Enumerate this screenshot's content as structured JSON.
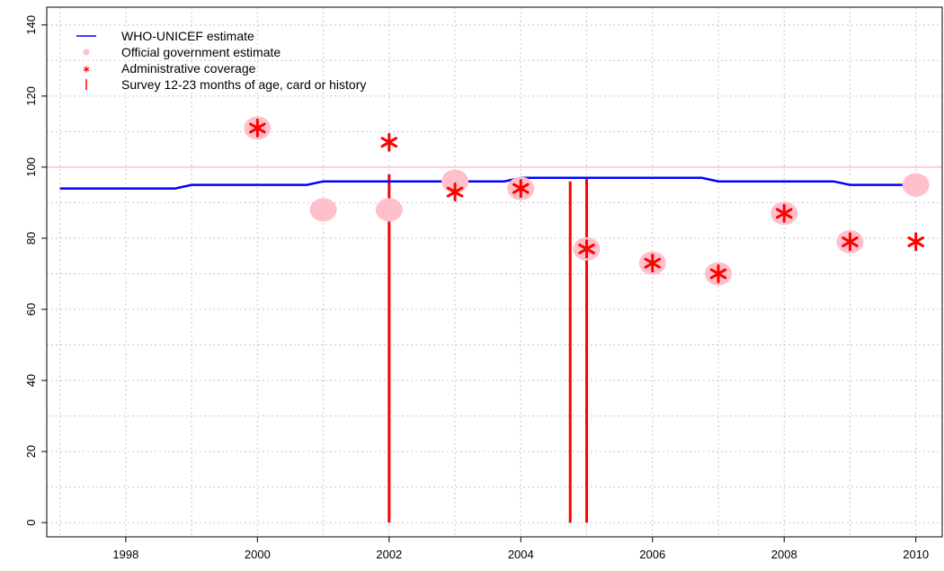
{
  "chart_data": {
    "type": "scatter",
    "title": "",
    "xlabel": "",
    "ylabel": "",
    "xlim": [
      1996.8,
      2010.4
    ],
    "ylim": [
      -4,
      145
    ],
    "x_ticks": [
      1998,
      2000,
      2002,
      2004,
      2006,
      2008,
      2010
    ],
    "y_ticks": [
      0,
      20,
      40,
      60,
      80,
      100,
      120,
      140
    ],
    "grid": true,
    "reference_line": 100,
    "legend_position": "top-left",
    "legend": [
      {
        "label": "WHO-UNICEF estimate",
        "marker": "line"
      },
      {
        "label": "Official government estimate",
        "marker": "circle"
      },
      {
        "label": "Administrative coverage",
        "marker": "asterisk"
      },
      {
        "label": "Survey 12-23 months of age, card or history",
        "marker": "vbar"
      }
    ],
    "series": [
      {
        "name": "WHO-UNICEF estimate",
        "kind": "step-line",
        "points": [
          [
            1997,
            94
          ],
          [
            1998,
            94
          ],
          [
            1999,
            95
          ],
          [
            2000,
            95
          ],
          [
            2001,
            96
          ],
          [
            2002,
            96
          ],
          [
            2003,
            96
          ],
          [
            2004,
            97
          ],
          [
            2005,
            97
          ],
          [
            2006,
            97
          ],
          [
            2007,
            96
          ],
          [
            2008,
            96
          ],
          [
            2009,
            95
          ],
          [
            2010,
            95
          ]
        ]
      },
      {
        "name": "Official government estimate",
        "kind": "circle",
        "points": [
          [
            2000,
            111
          ],
          [
            2001,
            88
          ],
          [
            2002,
            88
          ],
          [
            2003,
            96
          ],
          [
            2004,
            94
          ],
          [
            2005,
            77
          ],
          [
            2006,
            73
          ],
          [
            2007,
            70
          ],
          [
            2008,
            87
          ],
          [
            2009,
            79
          ],
          [
            2010,
            95
          ]
        ]
      },
      {
        "name": "Administrative coverage",
        "kind": "asterisk",
        "points": [
          [
            2000,
            111
          ],
          [
            2002,
            107
          ],
          [
            2003,
            93
          ],
          [
            2004,
            94
          ],
          [
            2005,
            77
          ],
          [
            2006,
            73
          ],
          [
            2007,
            70
          ],
          [
            2008,
            87
          ],
          [
            2009,
            79
          ],
          [
            2010,
            79
          ]
        ]
      },
      {
        "name": "Survey 12-23 months of age, card or history",
        "kind": "vbar",
        "points": [
          [
            2002,
            98
          ],
          [
            2004.75,
            96
          ],
          [
            2005,
            97
          ]
        ]
      }
    ],
    "colors": {
      "who_line": "#0000ff",
      "gov_circle": "#ffc0cb",
      "admin_star": "#ff0000",
      "survey_bar": "#ff0000",
      "ref_line": "#ffc0cb",
      "grid": "#c8c8c8",
      "axis": "#000000"
    }
  }
}
